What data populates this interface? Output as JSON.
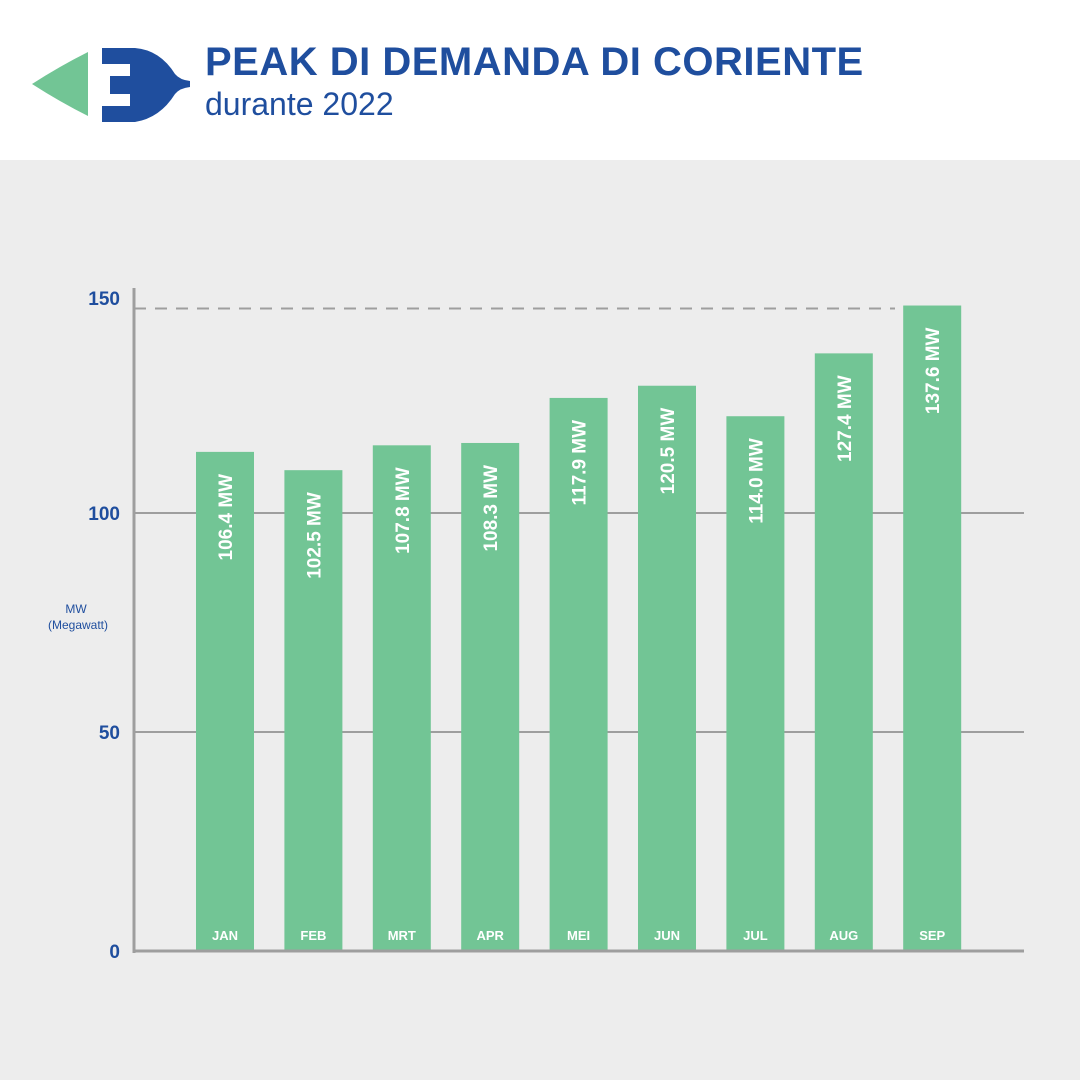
{
  "header": {
    "title": "PEAK DI DEMANDA DI CORIENTE",
    "subtitle": "durante 2022",
    "logo": "plug-arrow-icon"
  },
  "colors": {
    "bar": "#72c595",
    "text": "#1f4e9e",
    "grid": "#9e9e9e",
    "background": "#ededed",
    "logo_green": "#72c595",
    "logo_blue": "#1f4e9e"
  },
  "chart_data": {
    "type": "bar",
    "title": "PEAK DI DEMANDA DI CORIENTE",
    "subtitle": "durante 2022",
    "categories": [
      "JAN",
      "FEB",
      "MRT",
      "APR",
      "MEI",
      "JUN",
      "JUL",
      "AUG",
      "SEP"
    ],
    "values": [
      106.4,
      102.5,
      107.8,
      108.3,
      117.9,
      120.5,
      114.0,
      127.4,
      137.6
    ],
    "data_labels": [
      "106.4 MW",
      "102.5 MW",
      "107.8 MW",
      "108.3 MW",
      "117.9 MW",
      "120.5 MW",
      "114.0 MW",
      "127.4 MW",
      "137.6 MW"
    ],
    "ylabel": [
      "MW",
      "(Megawatt)"
    ],
    "yticks": [
      "0",
      "50",
      "100",
      "150"
    ],
    "ylim": [
      0,
      150
    ],
    "grid": true,
    "peak_reference_line": "dashed at maximum value",
    "legend": "none"
  }
}
